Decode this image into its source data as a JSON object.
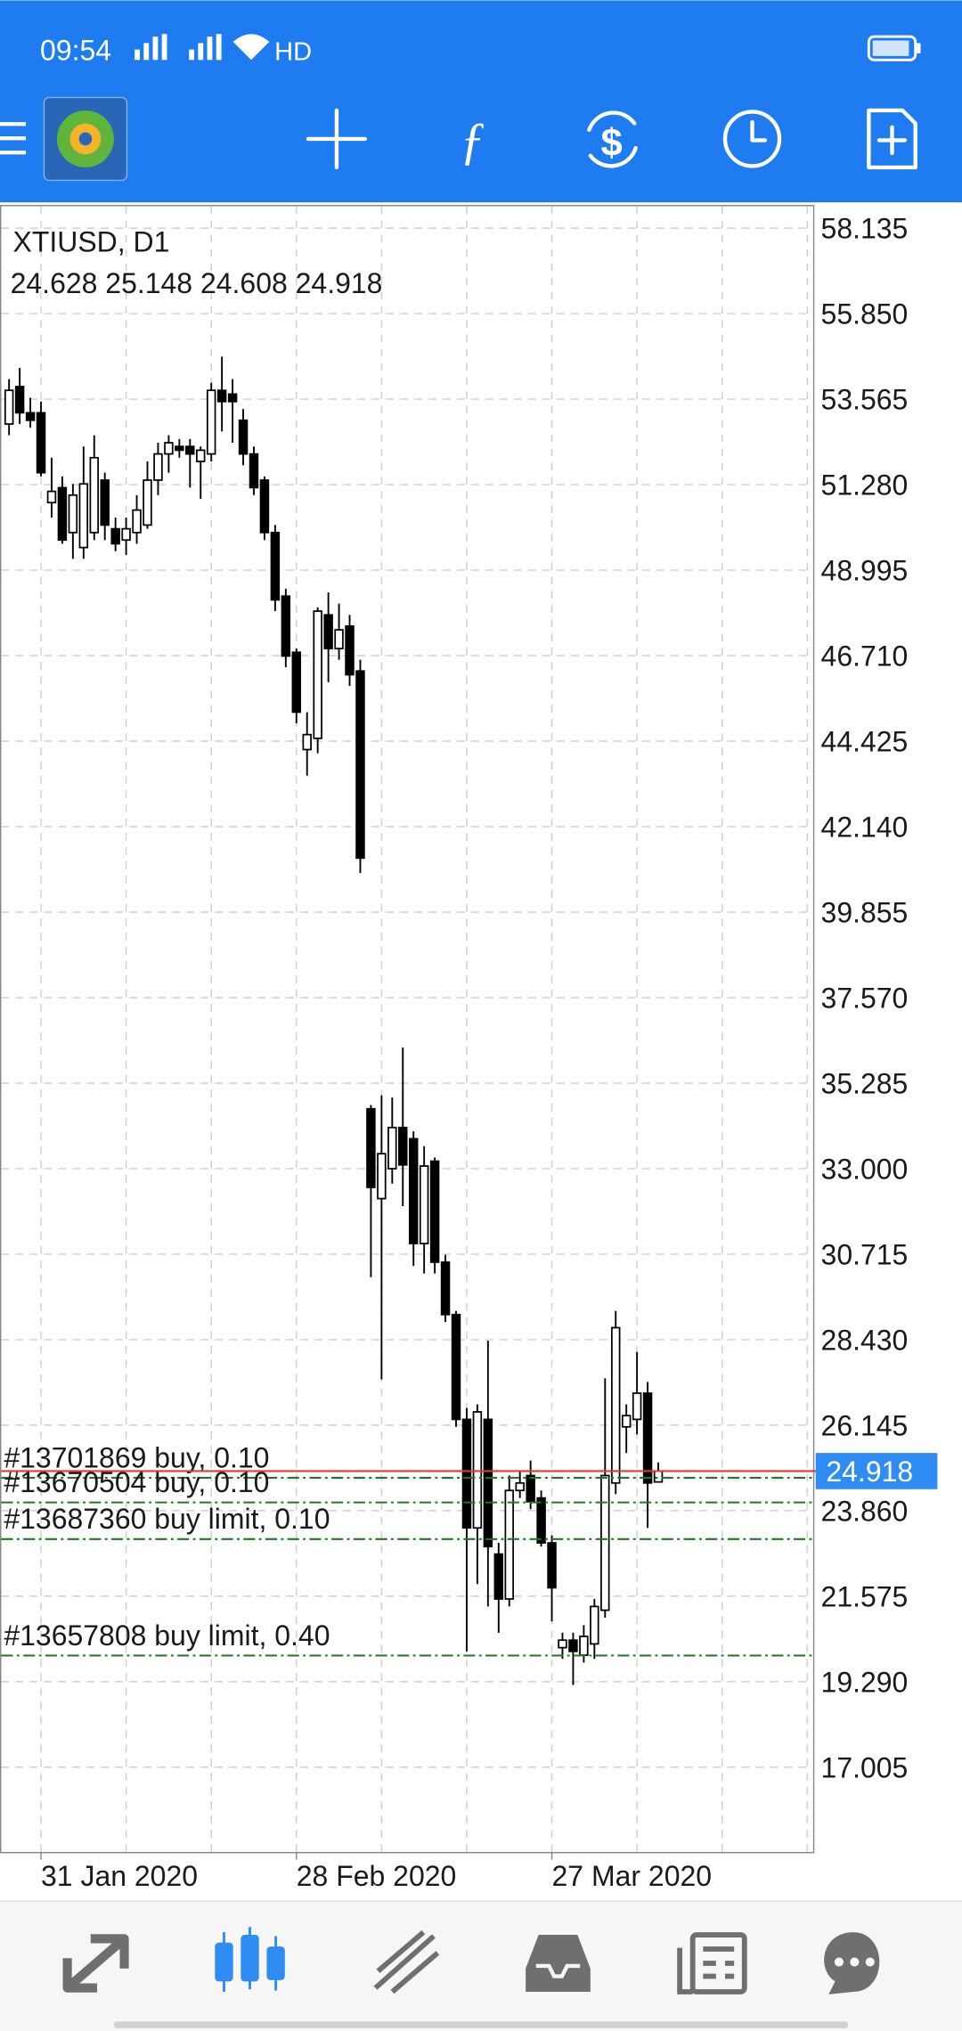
{
  "status_bar": {
    "time": "09:54",
    "hd": "HD"
  },
  "chart_data": {
    "type": "candlestick",
    "title": "XTIUSD, D1",
    "categories": [
      null,
      null,
      null,
      "31 Jan 2020",
      null,
      null,
      null,
      null,
      null,
      null,
      null,
      null,
      null,
      null,
      null,
      null,
      null,
      null,
      null,
      null,
      null,
      null,
      null,
      null,
      null,
      null,
      null,
      "28 Feb 2020",
      null,
      null,
      null,
      null,
      null,
      null,
      null,
      null,
      null,
      null,
      null,
      null,
      null,
      null,
      null,
      null,
      null,
      null,
      null,
      null,
      null,
      null,
      null,
      "27 Mar 2020",
      null,
      null,
      null,
      null,
      null,
      null,
      null,
      null,
      null,
      null
    ],
    "open": [
      52.9,
      53.9,
      53.2,
      53.2,
      50.8,
      51.2,
      50.0,
      49.6,
      50.0,
      51.4,
      50.1,
      49.8,
      50.0,
      50.2,
      51.4,
      52.1,
      52.3,
      52.3,
      51.9,
      52.1,
      53.8,
      53.7,
      53.0,
      52.1,
      51.4,
      50.0,
      48.3,
      46.8,
      44.2,
      44.5,
      47.8,
      46.9,
      47.5,
      46.3,
      34.6,
      32.2,
      33.0,
      34.1,
      33.8,
      31.0,
      33.2,
      30.5,
      29.1,
      26.3,
      23.4,
      26.3,
      22.7,
      21.5,
      24.4,
      24.8,
      24.2,
      23.0,
      20.2,
      20.4,
      20.0,
      20.3,
      21.2,
      24.6,
      26.1,
      26.3,
      27.0,
      24.628
    ],
    "high": [
      54.1,
      54.4,
      53.6,
      53.5,
      52.0,
      51.5,
      51.3,
      52.3,
      52.6,
      51.6,
      50.4,
      50.4,
      51.0,
      51.9,
      52.4,
      52.6,
      52.5,
      52.5,
      52.3,
      54.0,
      54.7,
      54.1,
      53.3,
      52.3,
      51.5,
      50.2,
      48.5,
      46.9,
      45.2,
      48.0,
      48.4,
      48.1,
      47.8,
      46.6,
      34.7,
      34.96,
      34.9,
      36.24,
      34.0,
      33.6,
      33.3,
      30.7,
      29.2,
      26.6,
      26.7,
      28.4,
      23.0,
      24.8,
      24.9,
      25.2,
      24.4,
      23.2,
      20.6,
      20.6,
      20.8,
      21.5,
      27.4,
      29.2,
      26.7,
      28.1,
      27.3,
      25.148
    ],
    "low": [
      52.6,
      52.9,
      52.8,
      51.5,
      50.4,
      49.7,
      49.3,
      49.3,
      49.8,
      49.8,
      49.5,
      49.4,
      49.7,
      50.1,
      51.0,
      51.6,
      52.0,
      51.2,
      50.9,
      51.9,
      52.7,
      52.4,
      51.8,
      51.0,
      49.8,
      47.9,
      46.4,
      44.9,
      43.5,
      44.1,
      46.0,
      46.6,
      45.9,
      40.9,
      30.1,
      27.37,
      32.6,
      32.0,
      30.4,
      30.2,
      30.2,
      28.9,
      26.1,
      20.1,
      21.9,
      21.3,
      20.6,
      21.3,
      24.2,
      23.9,
      22.9,
      20.9,
      19.9,
      19.2,
      19.8,
      19.9,
      21.0,
      24.3,
      25.4,
      25.9,
      23.4,
      24.608
    ],
    "close": [
      53.8,
      53.2,
      53.0,
      51.6,
      51.1,
      49.8,
      51.0,
      51.3,
      52.0,
      50.2,
      49.7,
      50.1,
      50.6,
      51.4,
      52.1,
      52.4,
      52.2,
      52.1,
      52.2,
      53.8,
      53.5,
      53.5,
      52.1,
      51.2,
      50.0,
      48.2,
      46.7,
      45.2,
      44.6,
      47.9,
      46.9,
      47.4,
      46.2,
      41.3,
      32.5,
      33.4,
      34.1,
      33.1,
      31.0,
      33.07,
      30.5,
      29.1,
      26.3,
      23.4,
      26.5,
      22.9,
      21.5,
      24.4,
      24.6,
      24.1,
      23.0,
      21.8,
      20.4,
      20.1,
      20.5,
      21.3,
      24.8,
      28.75,
      26.4,
      27.0,
      24.6,
      24.918
    ],
    "ylim": [
      14.74,
      58.72
    ],
    "yticks": [
      58.135,
      {
        "value": 55.85,
        "label": "55.850"
      },
      53.565,
      {
        "value": 51.28,
        "label": "51.280"
      },
      48.995,
      {
        "value": 46.71,
        "label": "46.710"
      },
      44.425,
      {
        "value": 42.14,
        "label": "42.140"
      },
      39.855,
      {
        "value": 37.57,
        "label": "37.570"
      },
      35.285,
      {
        "value": 33,
        "label": "33.000"
      },
      30.715,
      {
        "value": 28.43,
        "label": "28.430"
      },
      26.145,
      {
        "value": 23.86,
        "label": "23.860"
      },
      21.575,
      {
        "value": 19.29,
        "label": "19.290"
      },
      17.005
    ],
    "grid": true,
    "up_color": "#ffffff",
    "down_color": "#000000",
    "price_line_color": "#e53935",
    "price_label_color": "#2f8cf3",
    "order_color": "#1f7a1f",
    "orders": [
      {
        "label": "#13701869 buy, 0.10",
        "price": 24.74
      },
      {
        "label": "#13670504 buy, 0.10",
        "price": 24.08
      },
      {
        "label": "#13687360 buy limit, 0.10",
        "price": 23.1
      },
      {
        "label": "#13657808 buy limit, 0.40",
        "price": 19.99
      }
    ]
  }
}
